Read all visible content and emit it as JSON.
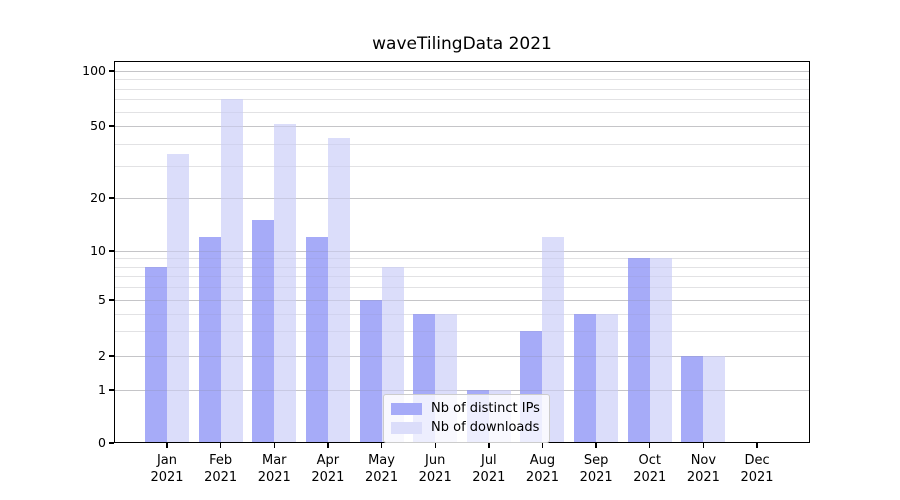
{
  "chart_data": {
    "type": "bar",
    "title": "waveTilingData 2021",
    "categories": [
      "Jan",
      "Feb",
      "Mar",
      "Apr",
      "May",
      "Jun",
      "Jul",
      "Aug",
      "Sep",
      "Oct",
      "Nov",
      "Dec"
    ],
    "x_tick_year": "2021",
    "series": [
      {
        "name": "Nb of distinct IPs",
        "color": "#a6abf8",
        "values": [
          8,
          12,
          15,
          12,
          5,
          4,
          1,
          3,
          4,
          9,
          2,
          0
        ]
      },
      {
        "name": "Nb of downloads",
        "color": "#dbddfa",
        "values": [
          35,
          70,
          51,
          43,
          8,
          4,
          1,
          12,
          4,
          9,
          2,
          0
        ]
      }
    ],
    "y_axis": {
      "ticks": [
        100,
        50,
        20,
        10,
        5,
        2,
        1,
        0
      ],
      "minor_ticks": [
        90,
        80,
        70,
        60,
        40,
        30,
        9,
        8,
        7,
        6,
        4,
        3
      ],
      "scale": "log-like, compressed near zero",
      "ylim": [
        0,
        113
      ]
    },
    "grid": {
      "major_color": "#d8d8d8",
      "minor_color": "#eeeeee",
      "overlay_major": "rgba(130,130,145,0.22)",
      "overlay_minor": "rgba(130,130,145,0.10)"
    },
    "legend": {
      "position": "lower center",
      "entries": [
        "Nb of distinct IPs",
        "Nb of downloads"
      ]
    },
    "axis_color": "#000000"
  }
}
